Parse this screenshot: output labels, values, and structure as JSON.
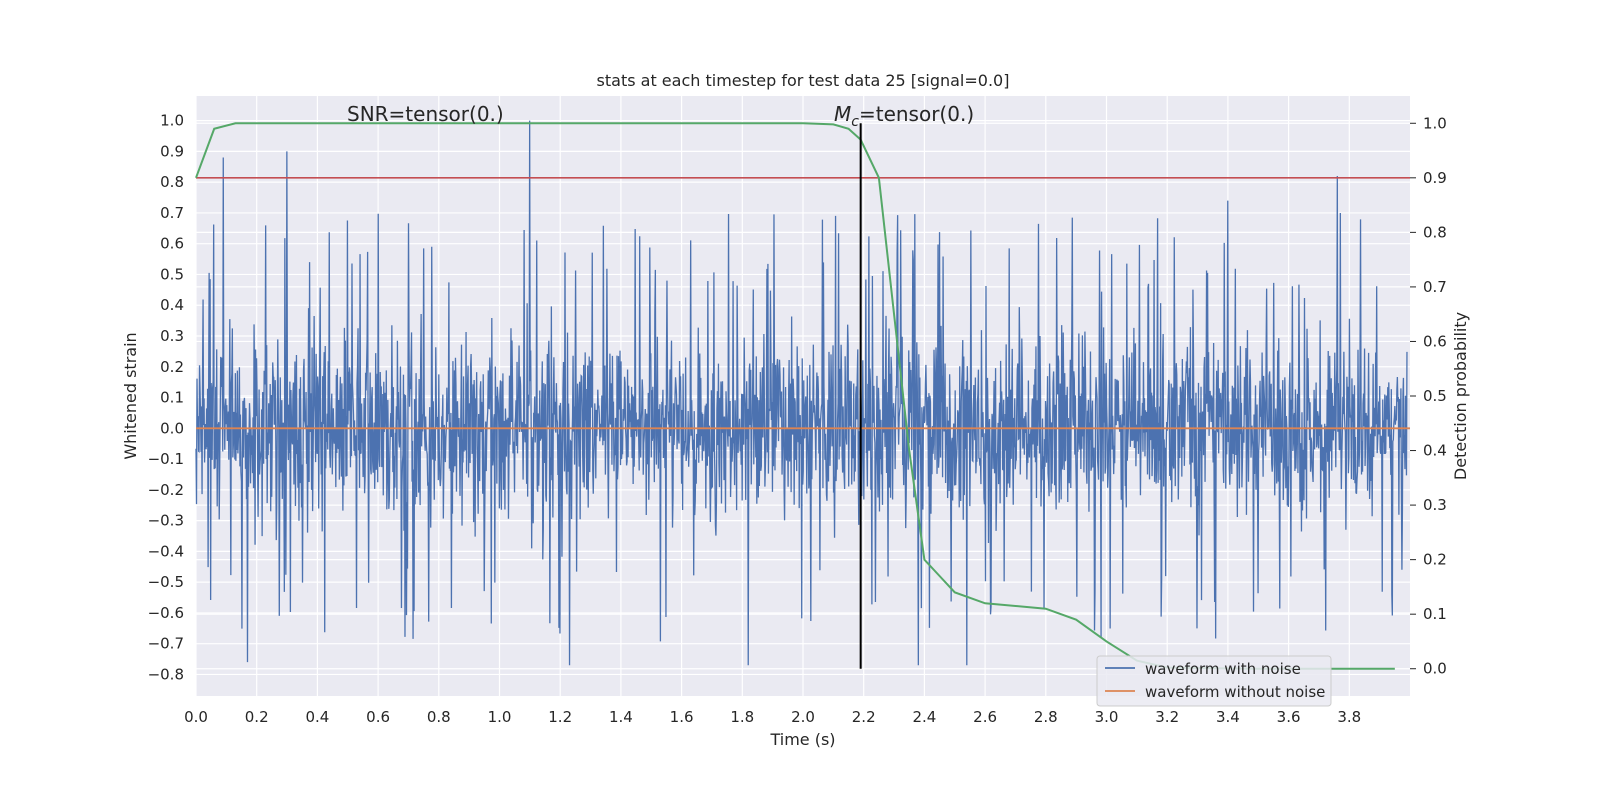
{
  "chart_data": {
    "type": "line",
    "title": "stats at each timestep for test data 25 [signal=0.0]",
    "xlabel": "Time (s)",
    "ylabel": "Whitened strain",
    "y2label": "Detection probability",
    "xlim": [
      0.0,
      4.0
    ],
    "ylim": [
      -0.87,
      1.08
    ],
    "y2lim": [
      -0.05,
      1.05
    ],
    "x_ticks": [
      "0.0",
      "0.2",
      "0.4",
      "0.6",
      "0.8",
      "1.0",
      "1.2",
      "1.4",
      "1.6",
      "1.8",
      "2.0",
      "2.2",
      "2.4",
      "2.6",
      "2.8",
      "3.0",
      "3.2",
      "3.4",
      "3.6",
      "3.8"
    ],
    "y_ticks": [
      "−0.8",
      "−0.7",
      "−0.6",
      "−0.5",
      "−0.4",
      "−0.3",
      "−0.2",
      "−0.1",
      "0.0",
      "0.1",
      "0.2",
      "0.3",
      "0.4",
      "0.5",
      "0.6",
      "0.7",
      "0.8",
      "0.9",
      "1.0"
    ],
    "y2_ticks": [
      "0.0",
      "0.1",
      "0.2",
      "0.3",
      "0.4",
      "0.5",
      "0.6",
      "0.7",
      "0.8",
      "0.9",
      "1.0"
    ],
    "grid": true,
    "legend_position": "lower-right",
    "annotations": {
      "snr": "SNR=tensor(0.)",
      "mc_symbol": "M",
      "mc_subscript": "c",
      "mc_value": "=tensor(0.)"
    },
    "series": [
      {
        "name": "waveform with noise",
        "axis": "left",
        "color": "#4c72b0",
        "note": "dense noise, approx. range −0.77 to 1.0",
        "peaks": [
          {
            "x": 0.09,
            "y": 0.88
          },
          {
            "x": 0.3,
            "y": 0.9
          },
          {
            "x": 1.1,
            "y": 1.0
          },
          {
            "x": 0.17,
            "y": -0.76
          },
          {
            "x": 1.82,
            "y": -0.77
          },
          {
            "x": 1.23,
            "y": -0.77
          },
          {
            "x": 2.38,
            "y": -0.77
          },
          {
            "x": 2.54,
            "y": -0.77
          },
          {
            "x": 3.76,
            "y": 0.82
          },
          {
            "x": 3.4,
            "y": 0.74
          }
        ],
        "amplitude_envelope": 0.55
      },
      {
        "name": "waveform without noise",
        "axis": "left",
        "color": "#dd8452",
        "x": [
          0.0,
          4.0
        ],
        "y": [
          0.0,
          0.0
        ]
      },
      {
        "name": "",
        "axis": "right",
        "color": "#55a868",
        "x": [
          0.0,
          0.06,
          0.13,
          0.5,
          1.0,
          1.5,
          2.0,
          2.1,
          2.15,
          2.19,
          2.25,
          2.3,
          2.35,
          2.4,
          2.45,
          2.5,
          2.6,
          2.8,
          2.9,
          3.0,
          3.1,
          3.2,
          3.5,
          3.8,
          3.95
        ],
        "y": [
          0.9,
          0.99,
          1.0,
          1.0,
          1.0,
          1.0,
          1.0,
          0.998,
          0.99,
          0.97,
          0.9,
          0.65,
          0.4,
          0.2,
          0.17,
          0.14,
          0.12,
          0.11,
          0.09,
          0.05,
          0.015,
          0.002,
          0.0,
          0.0,
          0.0
        ]
      }
    ],
    "threshold": {
      "axis": "right",
      "y": 0.9,
      "color": "#c44e52"
    },
    "marker": {
      "x": 2.19,
      "color": "#000000"
    }
  }
}
